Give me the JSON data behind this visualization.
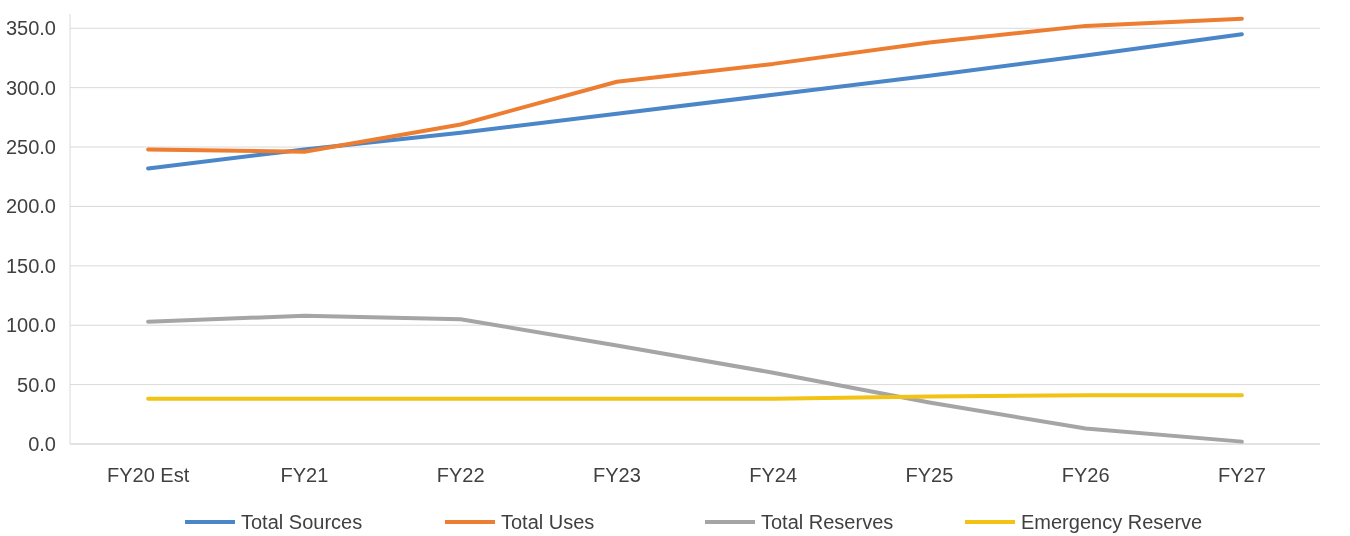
{
  "chart_data": {
    "type": "line",
    "categories": [
      "FY20 Est",
      "FY21",
      "FY22",
      "FY23",
      "FY24",
      "FY25",
      "FY26",
      "FY27"
    ],
    "series": [
      {
        "name": "Total Sources",
        "color": "#4a86c8",
        "values": [
          232,
          248,
          262,
          278,
          294,
          310,
          327,
          345
        ]
      },
      {
        "name": "Total Uses",
        "color": "#ed7d31",
        "values": [
          248,
          246,
          269,
          305,
          320,
          338,
          352,
          358
        ]
      },
      {
        "name": "Total Reserves",
        "color": "#a5a5a5",
        "values": [
          103,
          108,
          105,
          83,
          60,
          35,
          13,
          2
        ]
      },
      {
        "name": "Emergency Reserve",
        "color": "#f2c314",
        "values": [
          38,
          38,
          38,
          38,
          38,
          40,
          41,
          41
        ]
      }
    ],
    "ylim": [
      0,
      362
    ],
    "yticks": [
      {
        "value": 0,
        "label": "0.0"
      },
      {
        "value": 50,
        "label": "50.0"
      },
      {
        "value": 100,
        "label": "100.0"
      },
      {
        "value": 150,
        "label": "150.0"
      },
      {
        "value": 200,
        "label": "200.0"
      },
      {
        "value": 250,
        "label": "250.0"
      },
      {
        "value": 300,
        "label": "300.0"
      },
      {
        "value": 350,
        "label": "350.0"
      }
    ],
    "grid": "y",
    "legend": "bottom",
    "marker": "none",
    "line_style": "solid"
  }
}
